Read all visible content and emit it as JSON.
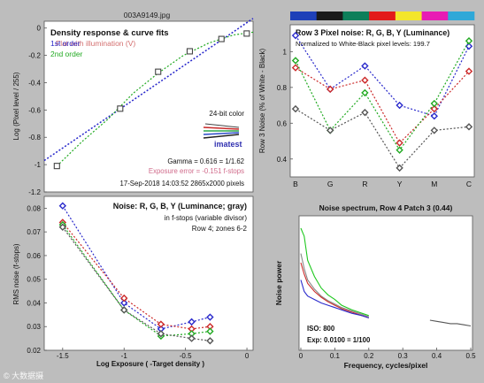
{
  "file_title": "003A9149.jpg",
  "watermark": "© 大数据摄",
  "chart_data": [
    {
      "id": "density",
      "type": "scatter",
      "title": "Density response & curve fits",
      "legend": [
        "1st order",
        "2nd order"
      ],
      "overlay_title": "Flat with illumination (V)",
      "xlabel": "",
      "ylabel": "Log (Pixel level / 255)",
      "xlim": [
        -1.6,
        0.05
      ],
      "ylim": [
        -1.2,
        0.05
      ],
      "yticks": [
        0,
        -0.2,
        -0.4,
        -0.6,
        -0.8,
        -1,
        -1.2
      ],
      "color_label": "24-bit color",
      "logo_text": "imatest",
      "gamma_text": "Gamma = 0.616 = 1/1.62",
      "exposure_error_text": "Exposure error = -0.151 f-stops",
      "timestamp_text": "17-Sep-2018 14:03:52   2865x2000 pixels",
      "points": {
        "x": [
          -1.5,
          -1.0,
          -0.7,
          -0.45,
          -0.2,
          0
        ],
        "y": [
          -1.01,
          -0.59,
          -0.32,
          -0.17,
          -0.08,
          -0.04
        ]
      },
      "fit1": {
        "x": [
          -1.6,
          0.05
        ],
        "y": [
          -0.97,
          0.07
        ]
      },
      "fit2": {
        "x": [
          -1.5,
          -1.3,
          -1.1,
          -0.9,
          -0.7,
          -0.5,
          -0.3,
          -0.1,
          0.05
        ],
        "y": [
          -1.01,
          -0.83,
          -0.67,
          -0.48,
          -0.33,
          -0.2,
          -0.11,
          -0.05,
          -0.03
        ]
      }
    },
    {
      "id": "pixel-noise",
      "type": "line",
      "title": "Row 3 Pixel noise: R, G, B, Y (Luminance)",
      "subtitle": "Normalized to White-Black pixel levels: 199.7",
      "xlabel": "",
      "ylabel": "Row 3 Noise (% of White - Black)",
      "categories": [
        "B",
        "G",
        "R",
        "Y",
        "M",
        "C"
      ],
      "ylim": [
        0.3,
        1.15
      ],
      "yticks": [
        0.4,
        0.6,
        0.8,
        1
      ],
      "color_bar": [
        "#1e40b8",
        "#1a1a1a",
        "#0d7f5a",
        "#e31a1a",
        "#f3e62b",
        "#e81bb4",
        "#2fa8d8"
      ],
      "series": [
        {
          "color": "#2a2acc",
          "values": [
            1.09,
            0.79,
            0.92,
            0.7,
            0.64,
            1.03
          ]
        },
        {
          "color": "#cc2a2a",
          "values": [
            0.91,
            0.79,
            0.84,
            0.49,
            0.68,
            0.89
          ]
        },
        {
          "color": "#22aa22",
          "values": [
            0.95,
            0.56,
            0.77,
            0.45,
            0.71,
            1.06
          ]
        },
        {
          "color": "#555555",
          "values": [
            0.68,
            0.56,
            0.66,
            0.35,
            0.56,
            0.58
          ]
        }
      ]
    },
    {
      "id": "noise-fstops",
      "type": "scatter",
      "title": "Noise: R, G, B, Y (Luminance; gray)",
      "subtitle": "in f-stops (variable divisor)",
      "note": "Row 4;  zones 6-2",
      "xlabel": "Log Exposure ( -Target density )",
      "ylabel": "RMS noise (f-stops)",
      "xlim": [
        -1.65,
        0.05
      ],
      "ylim": [
        0.02,
        0.085
      ],
      "xticks": [
        -1.5,
        -1,
        -0.5,
        0
      ],
      "yticks": [
        0.02,
        0.03,
        0.04,
        0.05,
        0.06,
        0.07,
        0.08
      ],
      "x": [
        -1.5,
        -1.0,
        -0.7,
        -0.45,
        -0.3
      ],
      "series": [
        {
          "color": "#2a2acc",
          "values": [
            0.081,
            0.04,
            0.029,
            0.032,
            0.034
          ]
        },
        {
          "color": "#cc2a2a",
          "values": [
            0.074,
            0.042,
            0.031,
            0.029,
            0.03
          ]
        },
        {
          "color": "#22aa22",
          "values": [
            0.073,
            0.037,
            0.026,
            0.027,
            0.028
          ]
        },
        {
          "color": "#555555",
          "values": [
            0.072,
            0.037,
            0.027,
            0.025,
            0.024
          ]
        }
      ]
    },
    {
      "id": "noise-spectrum",
      "type": "line",
      "title": "Noise spectrum, Row 4 Patch 3 (0.44)",
      "xlabel": "Frequency, cycles/pixel",
      "ylabel": "Noise power",
      "xlim": [
        0,
        0.5
      ],
      "xticks": [
        0,
        0.1,
        0.2,
        0.3,
        0.4,
        0.5
      ],
      "iso_text": "ISO:   800",
      "exp_text": "Exp:  0.0100 = 1/100",
      "series": [
        {
          "color": "#1ec81e",
          "x": [
            0,
            0.01,
            0.02,
            0.04,
            0.06,
            0.08,
            0.1,
            0.12,
            0.15,
            0.18,
            0.2
          ],
          "values": [
            1.0,
            0.93,
            0.72,
            0.58,
            0.48,
            0.42,
            0.38,
            0.33,
            0.29,
            0.26,
            0.24
          ]
        },
        {
          "color": "#888888",
          "x": [
            0,
            0.01,
            0.02,
            0.04,
            0.06,
            0.08,
            0.1,
            0.12,
            0.15,
            0.18,
            0.2
          ],
          "values": [
            0.78,
            0.65,
            0.55,
            0.47,
            0.41,
            0.37,
            0.34,
            0.31,
            0.28,
            0.25,
            0.23
          ]
        },
        {
          "color": "#cc2a2a",
          "x": [
            0,
            0.01,
            0.02,
            0.04,
            0.06,
            0.08,
            0.1,
            0.12,
            0.15,
            0.18,
            0.2
          ],
          "values": [
            0.7,
            0.6,
            0.52,
            0.45,
            0.4,
            0.36,
            0.33,
            0.3,
            0.27,
            0.24,
            0.22
          ]
        },
        {
          "color": "#2a2acc",
          "x": [
            0,
            0.01,
            0.02,
            0.04,
            0.06,
            0.08,
            0.1,
            0.12,
            0.15,
            0.18,
            0.2
          ],
          "values": [
            0.55,
            0.45,
            0.41,
            0.38,
            0.35,
            0.33,
            0.31,
            0.29,
            0.26,
            0.24,
            0.22
          ]
        }
      ],
      "tail": {
        "x": [
          0.38,
          0.4,
          0.42,
          0.44,
          0.46,
          0.48,
          0.5
        ],
        "values": [
          0.2,
          0.19,
          0.18,
          0.17,
          0.17,
          0.16,
          0.15
        ]
      }
    }
  ]
}
